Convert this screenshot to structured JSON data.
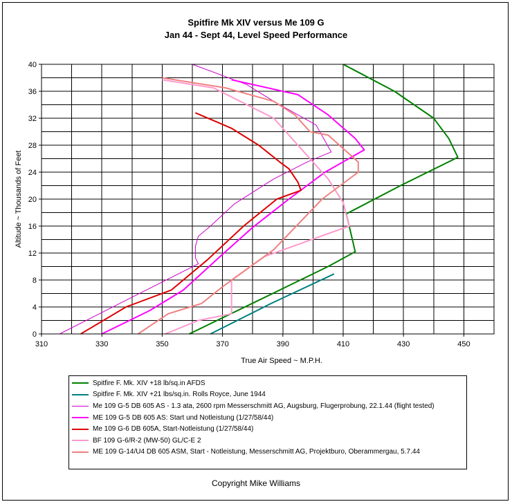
{
  "chart_data": {
    "type": "line",
    "title": "Spitfire Mk XIV versus Me 109 G",
    "subtitle": "Jan 44  - Sept 44, Level Speed Performance",
    "xlabel": "True Air Speed ~ M.P.H.",
    "ylabel": "Altitude ~ Thousands of Feet",
    "xlim": [
      310,
      460
    ],
    "ylim": [
      0,
      40
    ],
    "xticks": [
      "310",
      "330",
      "350",
      "370",
      "390",
      "410",
      "430",
      "450"
    ],
    "yticks": [
      "0",
      "4",
      "8",
      "12",
      "16",
      "20",
      "24",
      "28",
      "32",
      "36",
      "40"
    ],
    "grid": true,
    "legend_position": "bottom",
    "series": [
      {
        "name": "Spitfire F. Mk. XIV +18 lb/sq.in AFDS",
        "color": "#008000",
        "width": 2,
        "points": [
          [
            359,
            0
          ],
          [
            382,
            5
          ],
          [
            405,
            10
          ],
          [
            414,
            12.2
          ],
          [
            412,
            16
          ],
          [
            411,
            17.8
          ],
          [
            429,
            22
          ],
          [
            448,
            26.2
          ],
          [
            445,
            29
          ],
          [
            440,
            32
          ],
          [
            427,
            36
          ],
          [
            410,
            40
          ]
        ]
      },
      {
        "name": "Spitfire F. Mk. XIV +21 lbs/sq.in. Rolls Royce, June 1944",
        "color": "#008080",
        "width": 2,
        "points": [
          [
            366,
            0
          ],
          [
            386,
            4.5
          ],
          [
            407,
            8.9
          ]
        ]
      },
      {
        "name": "Me 109 G-5  DB 605 AS - 1.3 ata, 2600 rpm Messerschmitt AG, Augsburg, Flugerprobung, 22.1.44 (flight tested)",
        "color": "#cc00cc",
        "width": 1,
        "points": [
          [
            316,
            0
          ],
          [
            338,
            5
          ],
          [
            362,
            10.4
          ],
          [
            361,
            11.3
          ],
          [
            361,
            13
          ],
          [
            362,
            14.5
          ],
          [
            366,
            16
          ],
          [
            374,
            19.3
          ],
          [
            387,
            23
          ],
          [
            398,
            25.5
          ],
          [
            406,
            27
          ],
          [
            401,
            31
          ],
          [
            387,
            34.5
          ],
          [
            378,
            37
          ],
          [
            360,
            40
          ]
        ]
      },
      {
        "name": "ME 109 G-5  DB 605 AS: Start und Notleistung (1/27/58/44)",
        "color": "#ff00ff",
        "width": 2,
        "points": [
          [
            330,
            0
          ],
          [
            346,
            3.5
          ],
          [
            357,
            6.5
          ],
          [
            368,
            11
          ],
          [
            380,
            15.8
          ],
          [
            392,
            20
          ],
          [
            404,
            24
          ],
          [
            417,
            27.3
          ],
          [
            414,
            29
          ],
          [
            405,
            32.5
          ],
          [
            395,
            35.5
          ],
          [
            373,
            37.7
          ]
        ]
      },
      {
        "name": "Me 109 G-6  DB 605A, Start-Notleistung (1/27/58/44)",
        "color": "#dd0000",
        "width": 2,
        "points": [
          [
            323,
            0
          ],
          [
            338,
            4
          ],
          [
            353,
            6.5
          ],
          [
            365,
            11
          ],
          [
            377,
            16
          ],
          [
            388,
            20
          ],
          [
            396,
            21.3
          ],
          [
            395,
            22.5
          ],
          [
            392,
            24.5
          ],
          [
            389,
            25.5
          ],
          [
            382,
            28
          ],
          [
            373,
            30.5
          ],
          [
            361,
            32.8
          ]
        ]
      },
      {
        "name": "BF 109 G-6/R-2 (MW-50) GL/C-E 2",
        "color": "#ff99cc",
        "width": 2,
        "points": [
          [
            351,
            0
          ],
          [
            362,
            2
          ],
          [
            373,
            3
          ],
          [
            373,
            4
          ],
          [
            373,
            8
          ],
          [
            384,
            11.5
          ],
          [
            412,
            16
          ],
          [
            410,
            19.5
          ],
          [
            405,
            23
          ],
          [
            396,
            27.5
          ],
          [
            387,
            32
          ],
          [
            367,
            36.5
          ],
          [
            350,
            37.7
          ]
        ]
      },
      {
        "name": "ME 109 G-14/U4 DB 605 ASM, Start - Notleistung, Messerschmitt AG, Projektburo, Oberammergau, 5.7.44",
        "color": "#f08080",
        "width": 2,
        "points": [
          [
            342,
            0
          ],
          [
            352,
            3
          ],
          [
            363,
            4.5
          ],
          [
            370,
            7
          ],
          [
            387,
            12.5
          ],
          [
            403,
            20
          ],
          [
            415,
            24
          ],
          [
            415,
            25.5
          ],
          [
            410,
            27.5
          ],
          [
            405,
            29.5
          ],
          [
            399,
            30
          ],
          [
            397,
            31
          ],
          [
            394,
            32.5
          ],
          [
            387,
            34.5
          ],
          [
            371,
            36.5
          ],
          [
            350,
            38
          ]
        ]
      }
    ]
  },
  "copyright": "Copyright Mike Williams"
}
